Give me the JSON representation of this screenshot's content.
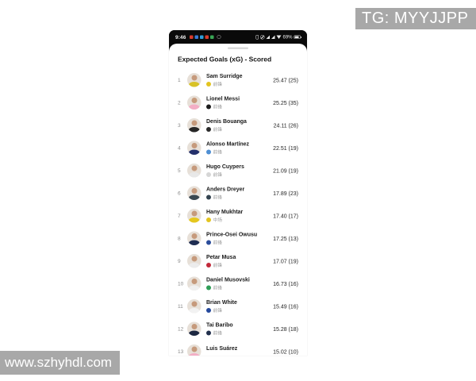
{
  "watermarks": {
    "top_right": "TG: MYYJJPP",
    "bottom_left": "www.szhyhdl.com"
  },
  "statusbar": {
    "time": "9:46",
    "battery_percent": "69%",
    "app_icon_colors": [
      "#d93a2b",
      "#3a7bd5",
      "#2f9fd8",
      "#d93a2b",
      "#3aa655"
    ]
  },
  "sheet": {
    "title": "Expected Goals (xG) - Scored"
  },
  "colors": {
    "watermark_gray": "#a8a8a8"
  },
  "players": [
    {
      "rank": "1",
      "name": "Sam Surridge",
      "position": "前锋",
      "value": "25.47 (25)",
      "badge_color": "#e3c41f",
      "jersey_color": "#d8c227"
    },
    {
      "rank": "2",
      "name": "Lionel Messi",
      "position": "前锋",
      "value": "25.25 (35)",
      "badge_color": "#1c1c1c",
      "jersey_color": "#f3aec5"
    },
    {
      "rank": "3",
      "name": "Denis Bouanga",
      "position": "前锋",
      "value": "24.11 (26)",
      "badge_color": "#2a2a2a",
      "jersey_color": "#262626"
    },
    {
      "rank": "4",
      "name": "Alonso Martínez",
      "position": "前锋",
      "value": "22.51 (19)",
      "badge_color": "#4f8fd3",
      "jersey_color": "#24306b"
    },
    {
      "rank": "5",
      "name": "Hugo Cuypers",
      "position": "前锋",
      "value": "21.09 (19)",
      "badge_color": "#d6d6d6",
      "jersey_color": "#e8e8e8"
    },
    {
      "rank": "6",
      "name": "Anders Dreyer",
      "position": "前锋",
      "value": "17.89 (23)",
      "badge_color": "#33434f",
      "jersey_color": "#3a4750"
    },
    {
      "rank": "7",
      "name": "Hany Mukhtar",
      "position": "中场",
      "value": "17.40 (17)",
      "badge_color": "#e3c41f",
      "jersey_color": "#e5c71e"
    },
    {
      "rank": "8",
      "name": "Prince-Osei Owusu",
      "position": "前锋",
      "value": "17.25 (13)",
      "badge_color": "#2b4d9b",
      "jersey_color": "#1f2d52"
    },
    {
      "rank": "9",
      "name": "Petar Musa",
      "position": "前锋",
      "value": "17.07 (19)",
      "badge_color": "#c2293a",
      "jersey_color": "#ececec"
    },
    {
      "rank": "10",
      "name": "Daniel Musovski",
      "position": "前锋",
      "value": "16.73 (16)",
      "badge_color": "#2f9e57",
      "jersey_color": "#f0f0f0"
    },
    {
      "rank": "11",
      "name": "Brian White",
      "position": "前锋",
      "value": "15.49 (16)",
      "badge_color": "#24489c",
      "jersey_color": "#f2f2f2"
    },
    {
      "rank": "12",
      "name": "Tai Baribo",
      "position": "前锋",
      "value": "15.28 (18)",
      "badge_color": "#22304d",
      "jersey_color": "#1c2741"
    },
    {
      "rank": "13",
      "name": "Luis Suárez",
      "position": "",
      "value": "15.02 (10)",
      "badge_color": "",
      "jersey_color": "#f3aec5"
    }
  ]
}
